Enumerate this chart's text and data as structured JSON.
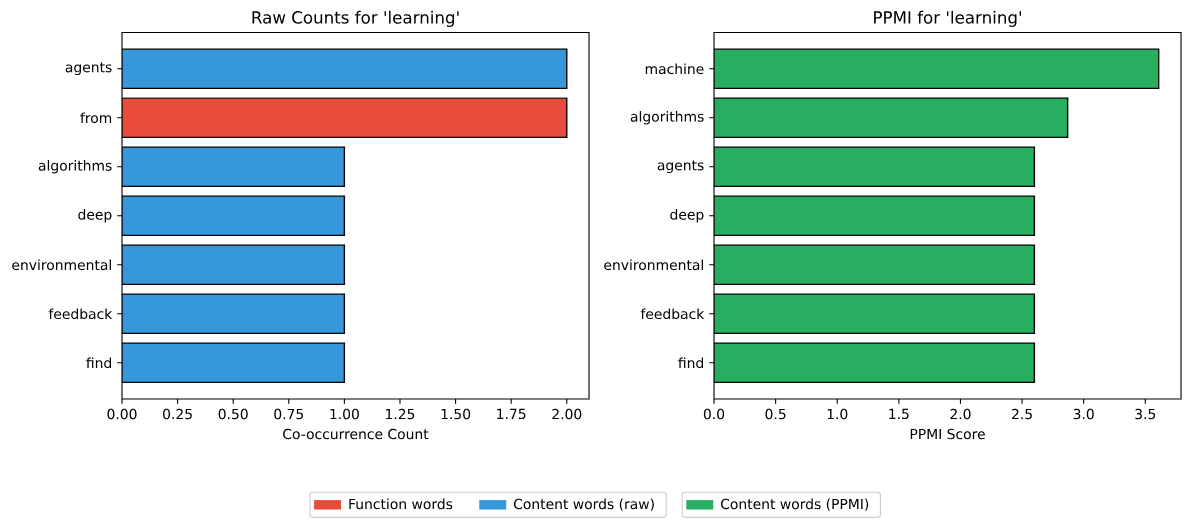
{
  "chart_data": [
    {
      "type": "bar",
      "orientation": "horizontal",
      "title": "Raw Counts for 'learning'",
      "xlabel": "Co-occurrence Count",
      "categories": [
        "agents",
        "from",
        "algorithms",
        "deep",
        "environmental",
        "feedback",
        "find"
      ],
      "series": [
        {
          "name": "Function words",
          "color": "#e74c3c",
          "values": [
            null,
            2,
            null,
            null,
            null,
            null,
            null
          ]
        },
        {
          "name": "Content words (raw)",
          "color": "#3498db",
          "values": [
            2,
            null,
            1,
            1,
            1,
            1,
            1
          ]
        }
      ],
      "xlim": [
        0,
        2.1
      ],
      "xticks": [
        {
          "value": 0,
          "label": "0.00"
        },
        {
          "value": 0.25,
          "label": "0.25"
        },
        {
          "value": 0.5,
          "label": "0.50"
        },
        {
          "value": 0.75,
          "label": "0.75"
        },
        {
          "value": 1,
          "label": "1.00"
        },
        {
          "value": 1.25,
          "label": "1.25"
        },
        {
          "value": 1.5,
          "label": "1.50"
        },
        {
          "value": 1.75,
          "label": "1.75"
        },
        {
          "value": 2,
          "label": "2.00"
        }
      ],
      "legend": "bottom"
    },
    {
      "type": "bar",
      "orientation": "horizontal",
      "title": "PPMI for 'learning'",
      "xlabel": "PPMI Score",
      "categories": [
        "machine",
        "algorithms",
        "agents",
        "deep",
        "environmental",
        "feedback",
        "find"
      ],
      "series": [
        {
          "name": "Content words (PPMI)",
          "color": "#27ae60",
          "values": [
            3.61,
            2.87,
            2.6,
            2.6,
            2.6,
            2.6,
            2.6
          ]
        }
      ],
      "xlim": [
        0,
        3.79
      ],
      "xticks": [
        {
          "value": 0,
          "label": "0.0"
        },
        {
          "value": 0.5,
          "label": "0.5"
        },
        {
          "value": 1,
          "label": "1.0"
        },
        {
          "value": 1.5,
          "label": "1.5"
        },
        {
          "value": 2,
          "label": "2.0"
        },
        {
          "value": 2.5,
          "label": "2.5"
        },
        {
          "value": 3,
          "label": "3.0"
        },
        {
          "value": 3.5,
          "label": "3.5"
        }
      ],
      "legend": "bottom"
    }
  ]
}
